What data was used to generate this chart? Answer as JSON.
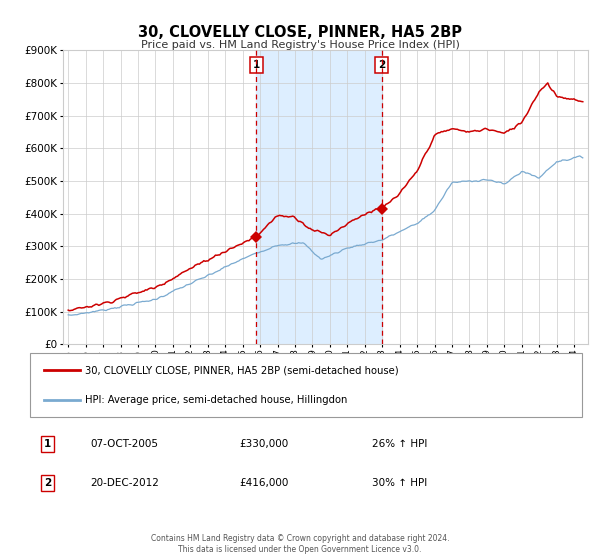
{
  "title": "30, CLOVELLY CLOSE, PINNER, HA5 2BP",
  "subtitle": "Price paid vs. HM Land Registry's House Price Index (HPI)",
  "legend_line1": "30, CLOVELLY CLOSE, PINNER, HA5 2BP (semi-detached house)",
  "legend_line2": "HPI: Average price, semi-detached house, Hillingdon",
  "sale1_date": "07-OCT-2005",
  "sale1_price": "£330,000",
  "sale1_hpi": "26% ↑ HPI",
  "sale2_date": "20-DEC-2012",
  "sale2_price": "£416,000",
  "sale2_hpi": "30% ↑ HPI",
  "footer": "Contains HM Land Registry data © Crown copyright and database right 2024.\nThis data is licensed under the Open Government Licence v3.0.",
  "red_color": "#cc0000",
  "blue_color": "#7aaad0",
  "shade_color": "#ddeeff",
  "bg_color": "#ffffff",
  "grid_color": "#cccccc",
  "ylim": [
    0,
    900000
  ],
  "yticks": [
    0,
    100000,
    200000,
    300000,
    400000,
    500000,
    600000,
    700000,
    800000,
    900000
  ],
  "xlim_start": 1994.7,
  "xlim_end": 2024.8,
  "sale1_x": 2005.77,
  "sale1_y": 330000,
  "sale2_x": 2012.97,
  "sale2_y": 416000
}
